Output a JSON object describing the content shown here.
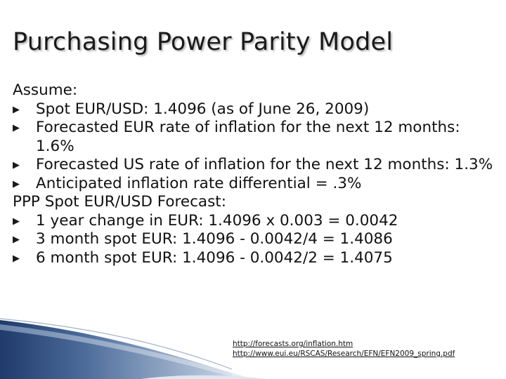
{
  "title": "Purchasing Power Parity Model",
  "section_assume": {
    "heading": "Assume:",
    "bullets": [
      "Spot EUR/USD: 1.4096 (as of June 26, 2009)",
      "Forecasted EUR rate of inflation for the next 12 months: 1.6%",
      "Forecasted US rate of inflation for the next 12 months: 1.3%",
      "Anticipated inflation rate differential = .3%"
    ]
  },
  "section_forecast": {
    "heading": "PPP Spot EUR/USD Forecast:",
    "bullets": [
      "1 year change in EUR: 1.4096 x 0.003 = 0.0042",
      "3 month spot EUR: 1.4096 - 0.0042/4 = 1.4086",
      "6 month spot EUR: 1.4096 - 0.0042/2 = 1.4075"
    ]
  },
  "links": [
    "http://forecasts.org/inflation.htm",
    "http://www.eui.eu/RSCAS/Research/EFN/EFN2009_spring.pdf"
  ],
  "colors": {
    "swoosh_dark": "#1f3a6b",
    "swoosh_light": "#7f97b8"
  }
}
